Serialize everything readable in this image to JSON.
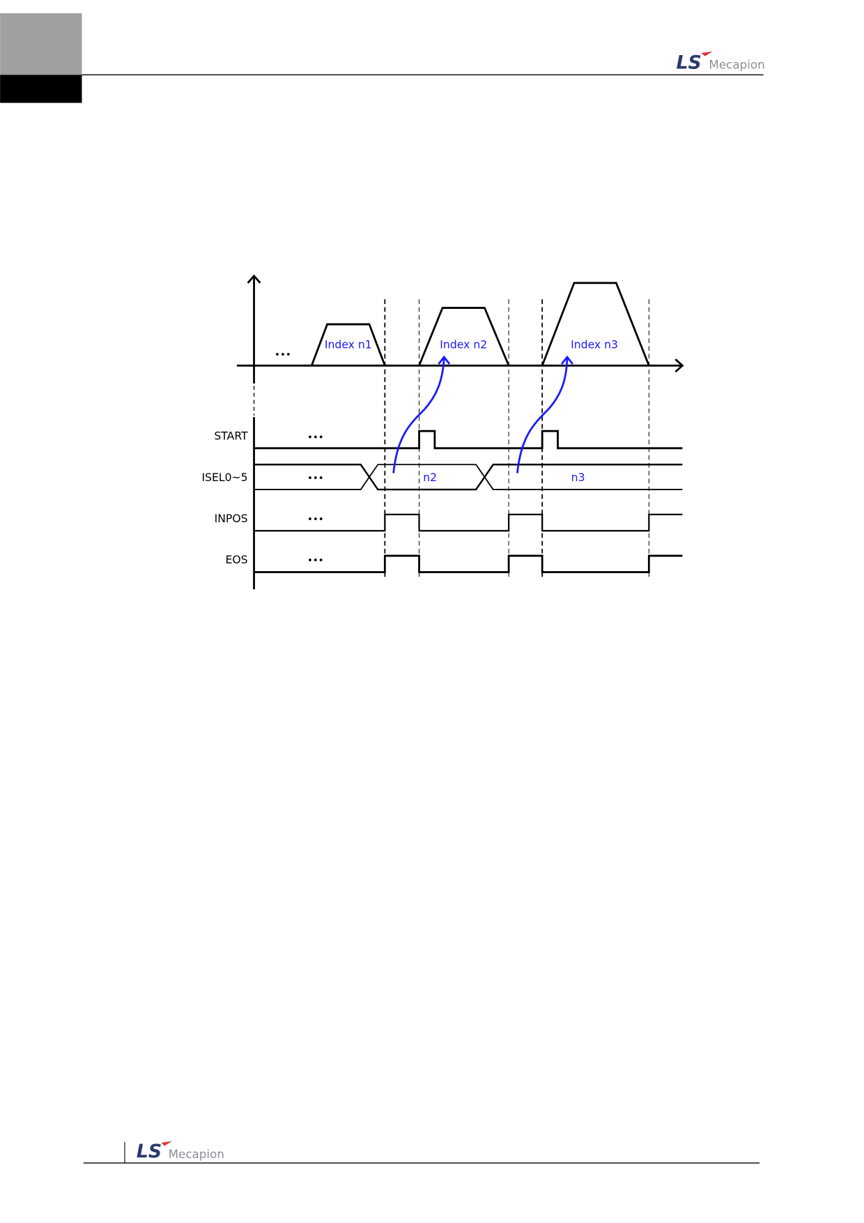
{
  "header": {
    "logo_text": "LS Mecapion",
    "logo_mark": "LS",
    "logo_word": "Mecapion"
  },
  "footer": {
    "logo_text": "LS Mecapion",
    "logo_mark": "LS",
    "logo_word": "Mecapion"
  },
  "colors": {
    "brand_navy": "#2a3a6b",
    "brand_red": "#e0303a",
    "brand_gray": "#8a8f96",
    "annotation_blue": "#1a1aff",
    "tab_gray": "#a0a0a0",
    "tab_black": "#000000"
  },
  "diagram": {
    "profiles": [
      {
        "label": "Index n1"
      },
      {
        "label": "Index n2"
      },
      {
        "label": "Index n3"
      }
    ],
    "ellipsis": "•••",
    "signals": [
      {
        "name": "START"
      },
      {
        "name": "ISEL0~5",
        "values": [
          "n2",
          "n3"
        ]
      },
      {
        "name": "INPOS"
      },
      {
        "name": "EOS"
      }
    ]
  }
}
